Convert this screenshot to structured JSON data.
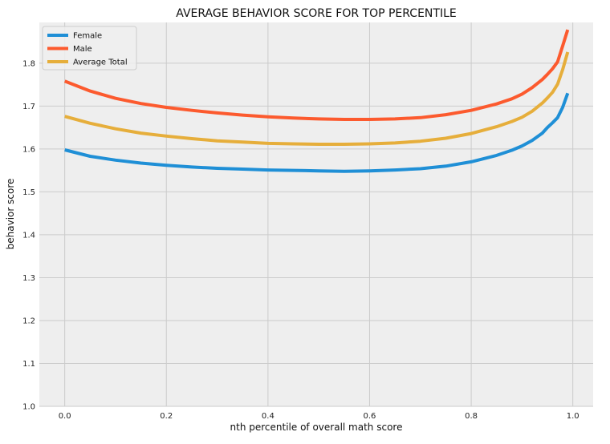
{
  "chart_data": {
    "type": "line",
    "title": "AVERAGE BEHAVIOR SCORE FOR TOP PERCENTILE",
    "xlabel": "nth percentile of overall math score",
    "ylabel": "behavior score",
    "xlim": [
      -0.05,
      1.04
    ],
    "ylim": [
      1.0,
      1.895
    ],
    "x_ticks": [
      0.0,
      0.2,
      0.4,
      0.6,
      0.8,
      1.0
    ],
    "x_tick_labels": [
      "0.0",
      "0.2",
      "0.4",
      "0.6",
      "0.8",
      "1.0"
    ],
    "y_ticks": [
      1.0,
      1.1,
      1.2,
      1.3,
      1.4,
      1.5,
      1.6,
      1.7,
      1.8
    ],
    "y_tick_labels": [
      "1.0",
      "1.1",
      "1.2",
      "1.3",
      "1.4",
      "1.5",
      "1.6",
      "1.7",
      "1.8"
    ],
    "grid": true,
    "legend_position": "top-left",
    "x": [
      0.0,
      0.05,
      0.1,
      0.15,
      0.2,
      0.25,
      0.3,
      0.35,
      0.4,
      0.45,
      0.5,
      0.55,
      0.6,
      0.65,
      0.7,
      0.75,
      0.8,
      0.85,
      0.88,
      0.9,
      0.92,
      0.94,
      0.95,
      0.96,
      0.97,
      0.98,
      0.99
    ],
    "series": [
      {
        "name": "Female",
        "color": "#1f8fd6",
        "values": [
          1.598,
          1.583,
          1.574,
          1.567,
          1.562,
          1.558,
          1.555,
          1.553,
          1.551,
          1.55,
          1.549,
          1.548,
          1.549,
          1.551,
          1.554,
          1.56,
          1.57,
          1.585,
          1.597,
          1.607,
          1.62,
          1.637,
          1.65,
          1.661,
          1.673,
          1.697,
          1.73
        ]
      },
      {
        "name": "Male",
        "color": "#fc5a2e",
        "values": [
          1.758,
          1.735,
          1.718,
          1.706,
          1.697,
          1.69,
          1.684,
          1.679,
          1.675,
          1.672,
          1.67,
          1.669,
          1.669,
          1.67,
          1.673,
          1.68,
          1.69,
          1.705,
          1.717,
          1.728,
          1.743,
          1.762,
          1.774,
          1.787,
          1.803,
          1.84,
          1.878
        ]
      },
      {
        "name": "Average Total",
        "color": "#e6ae3b",
        "values": [
          1.676,
          1.66,
          1.647,
          1.637,
          1.63,
          1.624,
          1.619,
          1.616,
          1.613,
          1.612,
          1.611,
          1.611,
          1.612,
          1.614,
          1.618,
          1.625,
          1.636,
          1.652,
          1.664,
          1.674,
          1.688,
          1.707,
          1.719,
          1.732,
          1.751,
          1.785,
          1.826
        ]
      }
    ]
  }
}
